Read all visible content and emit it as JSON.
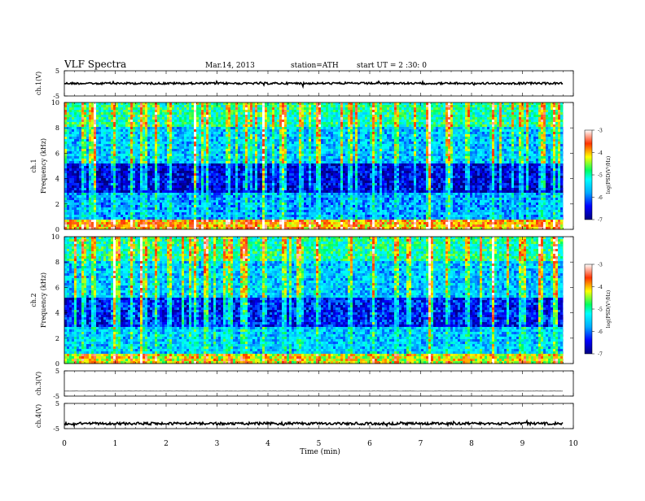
{
  "header": {
    "title": "VLF  Spectra",
    "date": "Mar.14, 2013",
    "station": "station=ATH",
    "start": "start  UT =  2 :30: 0"
  },
  "chart_data": {
    "type": "heatmap",
    "xlabel": "Time  (min)",
    "xlim": [
      0,
      10
    ],
    "x_ticks": [
      0,
      1,
      2,
      3,
      4,
      5,
      6,
      7,
      8,
      9,
      10
    ],
    "data_end_min": 9.8,
    "panels": [
      {
        "kind": "waveform",
        "ylabel": "ch.1(V)",
        "ylim": [
          -5,
          5
        ],
        "y_ticks": [
          5,
          -5
        ],
        "baseline_v": 0.0,
        "noise_amplitude_v": 0.4,
        "color": "#000000"
      },
      {
        "kind": "spectrogram",
        "ylabel_lines": [
          "ch.1",
          "Frequency  (kHz)"
        ],
        "ylim": [
          0,
          10
        ],
        "y_ticks": [
          0,
          2,
          4,
          6,
          8,
          10
        ],
        "colorbar": {
          "label": "log(PSD(V²/Hz)",
          "range": [
            -7,
            -3
          ],
          "ticks": [
            -3,
            -4,
            -5,
            -6,
            -7
          ]
        },
        "bands_khz": [
          {
            "from": 0,
            "to": 0.8,
            "level": -4.0
          },
          {
            "from": 0.8,
            "to": 2.8,
            "level": -5.8
          },
          {
            "from": 2.8,
            "to": 5.2,
            "level": -6.6
          },
          {
            "from": 5.2,
            "to": 8.0,
            "level": -5.6
          },
          {
            "from": 8.0,
            "to": 10,
            "level": -5.0
          }
        ],
        "spikes_min": [
          0.35,
          0.55,
          0.95,
          1.3,
          1.5,
          1.78,
          2.05,
          2.55,
          2.78,
          3.2,
          3.55,
          3.9,
          4.3,
          4.62,
          4.95,
          5.6,
          6.05,
          6.5,
          7.15,
          7.5,
          7.9,
          8.4,
          8.95,
          9.35,
          9.6
        ]
      },
      {
        "kind": "spectrogram",
        "ylabel_lines": [
          "ch.2",
          "Frequency  (kHz)"
        ],
        "ylim": [
          0,
          10
        ],
        "y_ticks": [
          0,
          2,
          4,
          6,
          8,
          10
        ],
        "colorbar": {
          "label": "log(PSD(V²/Hz)",
          "range": [
            -7,
            -3
          ],
          "ticks": [
            -3,
            -4,
            -5,
            -6,
            -7
          ]
        },
        "bands_khz": [
          {
            "from": 0,
            "to": 0.8,
            "level": -4.3
          },
          {
            "from": 0.8,
            "to": 2.8,
            "level": -5.6
          },
          {
            "from": 2.8,
            "to": 5.2,
            "level": -6.4
          },
          {
            "from": 5.2,
            "to": 8.0,
            "level": -5.6
          },
          {
            "from": 8.0,
            "to": 10,
            "level": -5.0
          }
        ],
        "spikes_min": [
          0.35,
          0.55,
          0.95,
          1.3,
          1.5,
          1.78,
          2.05,
          2.55,
          2.78,
          3.2,
          3.55,
          3.9,
          4.3,
          4.62,
          4.95,
          5.6,
          6.05,
          6.5,
          7.15,
          7.5,
          7.9,
          8.4,
          8.95,
          9.35,
          9.6
        ]
      },
      {
        "kind": "waveform",
        "ylabel": "ch.3(V)",
        "ylim": [
          -5,
          5
        ],
        "y_ticks": [
          5,
          -5
        ],
        "baseline_v": -3.0,
        "noise_amplitude_v": 0.05,
        "color": "#555555"
      },
      {
        "kind": "waveform",
        "ylabel": "ch.4(V)",
        "ylim": [
          -5,
          5
        ],
        "y_ticks": [
          5,
          -5
        ],
        "baseline_v": -3.0,
        "noise_amplitude_v": 0.5,
        "color": "#000000"
      }
    ]
  }
}
